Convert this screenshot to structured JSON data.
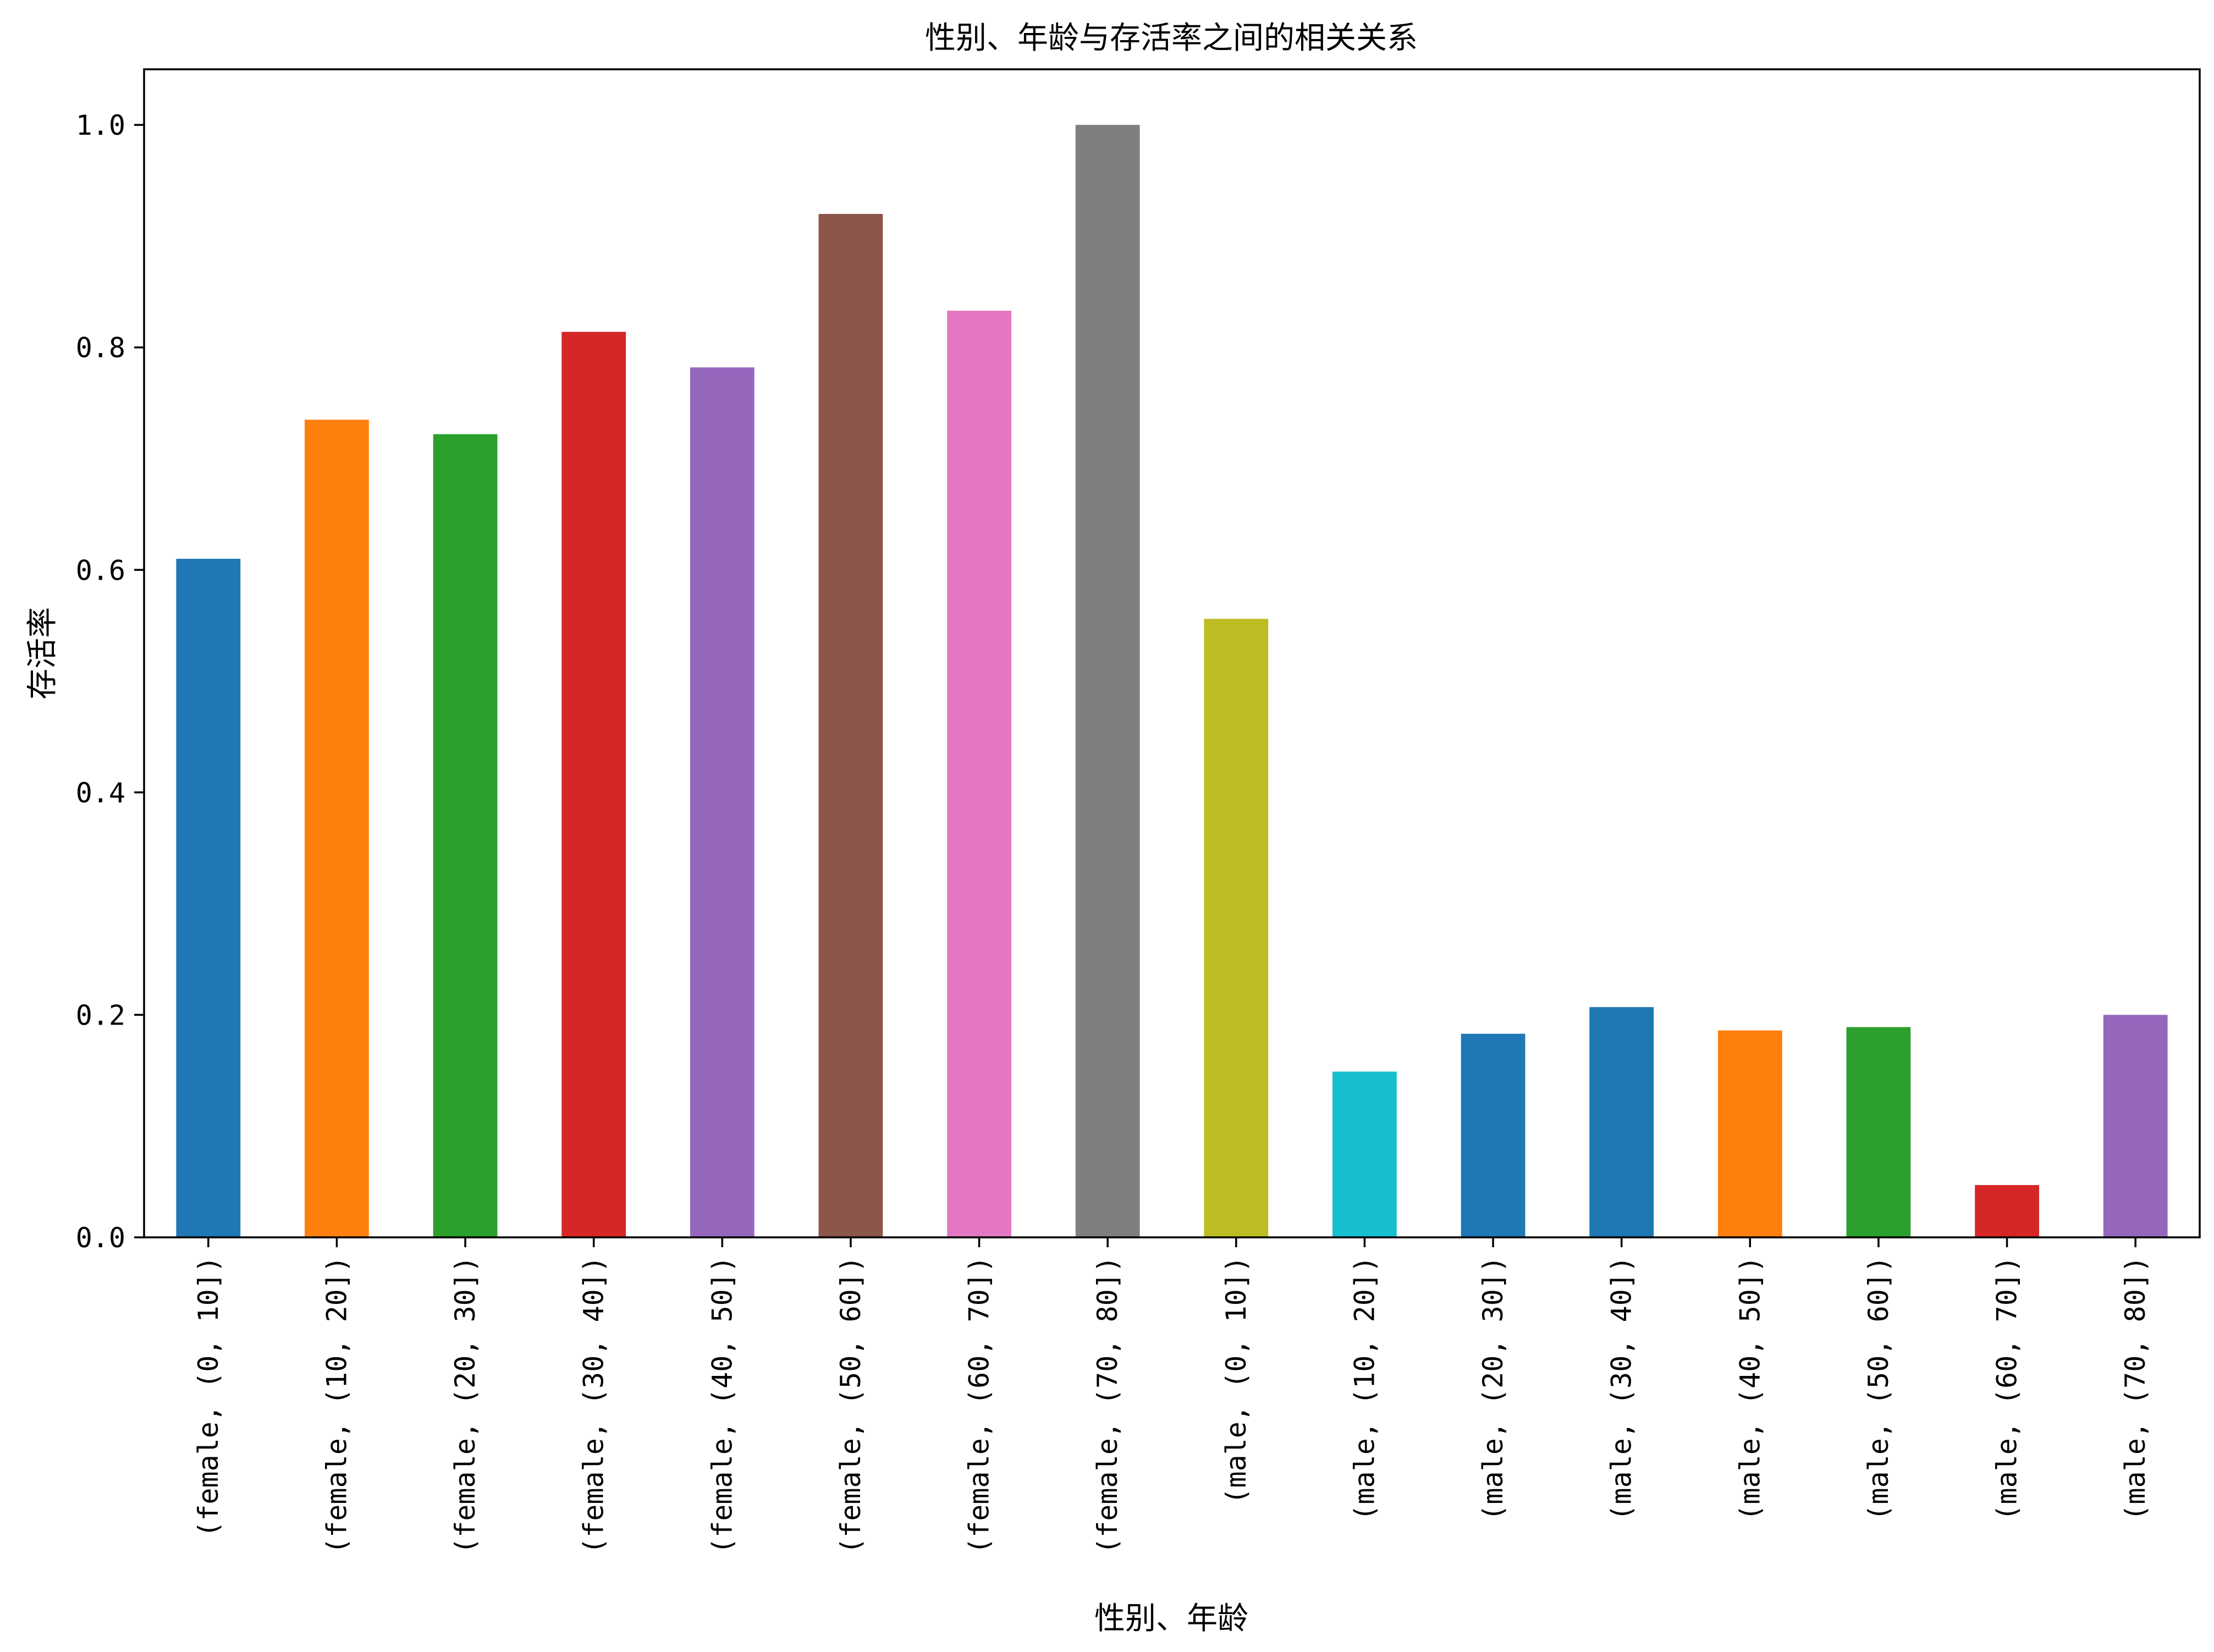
{
  "chart_data": {
    "type": "bar",
    "title": "性别、年龄与存活率之间的相关关系",
    "xlabel": "性别、年龄",
    "ylabel": "存活率",
    "ylim": [
      0,
      1.05
    ],
    "yticks": [
      "0.0",
      "0.2",
      "0.4",
      "0.6",
      "0.8",
      "1.0"
    ],
    "categories": [
      "(female, (0, 10])",
      "(female, (10, 20])",
      "(female, (20, 30])",
      "(female, (30, 40])",
      "(female, (40, 50])",
      "(female, (50, 60])",
      "(female, (60, 70])",
      "(female, (70, 80])",
      "(male, (0, 10])",
      "(male, (10, 20])",
      "(male, (20, 30])",
      "(male, (30, 40])",
      "(male, (40, 50])",
      "(male, (50, 60])",
      "(male, (60, 70])",
      "(male, (70, 80])"
    ],
    "values": [
      0.61,
      0.735,
      0.722,
      0.814,
      0.782,
      0.92,
      0.833,
      1.0,
      0.556,
      0.149,
      0.183,
      0.207,
      0.186,
      0.189,
      0.047,
      0.2
    ],
    "colors": [
      "#1f77b4",
      "#ff7f0e",
      "#2ca02c",
      "#d62728",
      "#9467bd",
      "#8c564b",
      "#e377c2",
      "#7f7f7f",
      "#bcbd22",
      "#17becf",
      "#1f77b4",
      "#1f77b4",
      "#ff7f0e",
      "#2ca02c",
      "#d62728",
      "#9467bd"
    ],
    "grid": false,
    "legend": "none"
  }
}
